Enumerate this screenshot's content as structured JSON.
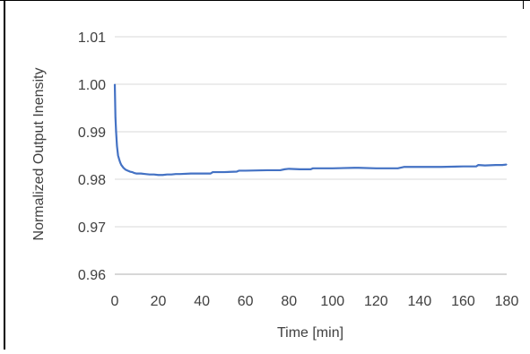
{
  "chart_data": {
    "type": "line",
    "title": "",
    "xlabel": "Time [min]",
    "ylabel": "Normalized Output Inensity",
    "xlim": [
      0,
      180
    ],
    "ylim": [
      0.96,
      1.01
    ],
    "x_ticks": [
      "0",
      "20",
      "40",
      "60",
      "80",
      "100",
      "120",
      "140",
      "160",
      "180"
    ],
    "y_ticks": [
      "0.96",
      "0.97",
      "0.98",
      "0.99",
      "1.00",
      "1.01"
    ],
    "grid": true,
    "legend": "none",
    "colors": {
      "line": "#4472c4",
      "grid": "#d9d9d9",
      "axis": "#bfbfbf",
      "text": "#404040",
      "border": "#000000"
    },
    "series": [
      {
        "x": [
          0,
          0.3,
          0.6,
          1,
          1.5,
          2,
          2.5,
          3,
          4,
          5,
          6,
          7,
          8,
          9,
          10,
          12,
          14,
          16,
          18,
          20,
          22,
          24,
          26,
          28,
          30,
          35,
          40,
          44,
          45,
          50,
          56,
          57,
          60,
          70,
          76,
          78,
          80,
          85,
          90,
          91,
          100,
          110,
          112,
          120,
          130,
          133,
          140,
          150,
          160,
          166,
          167,
          170,
          175,
          178,
          180
        ],
        "y": [
          1.0,
          0.993,
          0.99,
          0.987,
          0.985,
          0.9842,
          0.9835,
          0.983,
          0.9824,
          0.982,
          0.9818,
          0.9816,
          0.9815,
          0.9813,
          0.9812,
          0.9812,
          0.9811,
          0.981,
          0.981,
          0.9809,
          0.9809,
          0.981,
          0.981,
          0.9811,
          0.9811,
          0.9812,
          0.9812,
          0.9812,
          0.9815,
          0.9815,
          0.9816,
          0.9818,
          0.9818,
          0.9819,
          0.9819,
          0.9821,
          0.9822,
          0.9821,
          0.9821,
          0.9823,
          0.9823,
          0.9824,
          0.9824,
          0.9823,
          0.9823,
          0.9826,
          0.9826,
          0.9826,
          0.9827,
          0.9827,
          0.983,
          0.9829,
          0.983,
          0.983,
          0.9831
        ]
      }
    ]
  }
}
